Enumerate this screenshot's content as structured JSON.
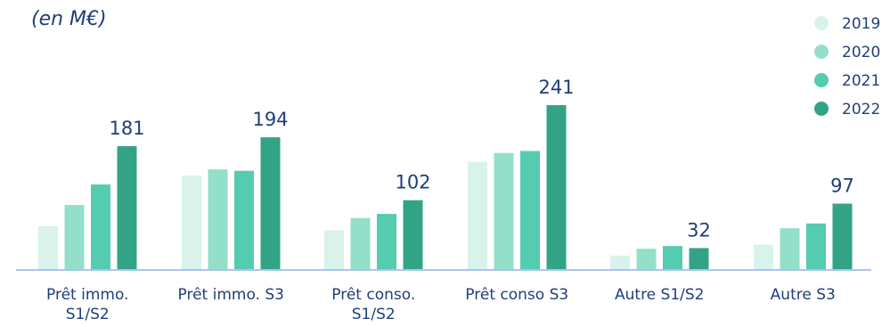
{
  "chart_data": {
    "type": "bar",
    "unit_label": "(en M€)",
    "categories": [
      [
        "Prêt immo.",
        "S1/S2"
      ],
      [
        "Prêt immo. S3"
      ],
      [
        "Prêt conso.",
        "S1/S2"
      ],
      [
        "Prêt conso S3"
      ],
      [
        "Autre S1/S2"
      ],
      [
        "Autre S3"
      ]
    ],
    "series": [
      {
        "name": "2019",
        "color": "#d9f2ec",
        "values": [
          64,
          138,
          58,
          158,
          21,
          37
        ]
      },
      {
        "name": "2020",
        "color": "#93dfca",
        "values": [
          95,
          147,
          76,
          171,
          31,
          61
        ]
      },
      {
        "name": "2021",
        "color": "#55cbb0",
        "values": [
          125,
          145,
          82,
          174,
          35,
          68
        ]
      },
      {
        "name": "2022",
        "color": "#33a386",
        "values": [
          181,
          194,
          102,
          241,
          32,
          97
        ]
      }
    ],
    "value_labels": [
      "181",
      "194",
      "102",
      "241",
      "32",
      "97"
    ],
    "ylim": [
      0,
      300
    ],
    "grid": false,
    "legend_position": "top-right",
    "baseline_color": "#a9c6e8"
  }
}
